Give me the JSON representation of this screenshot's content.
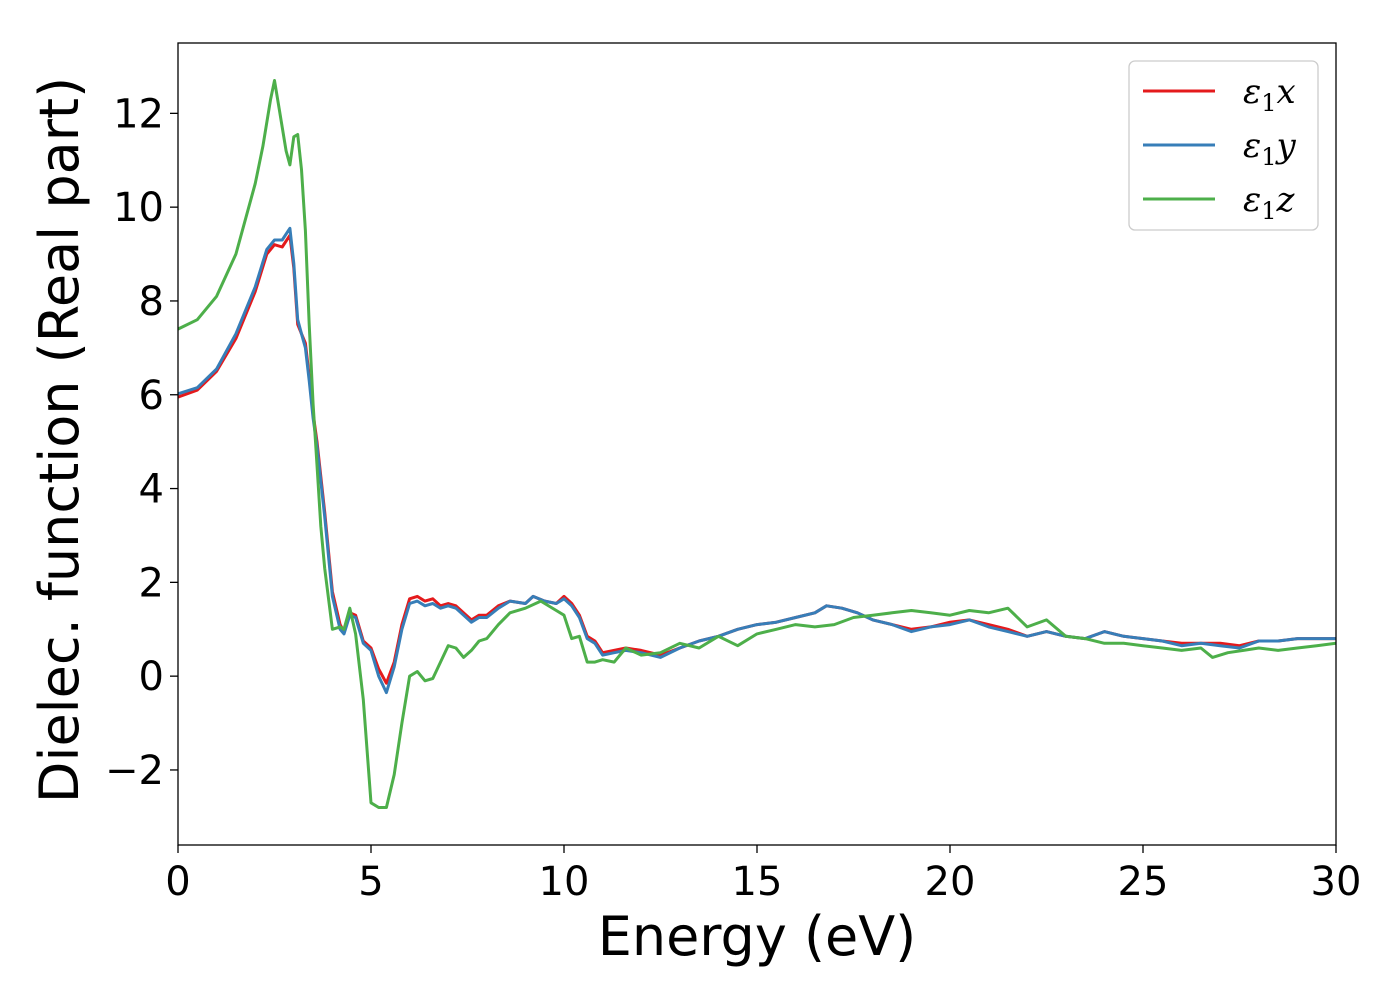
{
  "chart_data": {
    "type": "line",
    "xlabel": "Energy (eV)",
    "ylabel": "Dielec. function (Real part)",
    "xlim": [
      0,
      30
    ],
    "ylim": [
      -3.6,
      13.5
    ],
    "xticks": [
      0,
      5,
      10,
      15,
      20,
      25,
      30
    ],
    "xtick_labels": [
      "0",
      "5",
      "10",
      "15",
      "20",
      "25",
      "30"
    ],
    "yticks": [
      -2,
      0,
      2,
      4,
      6,
      8,
      10,
      12
    ],
    "ytick_labels": [
      "−2",
      "0",
      "2",
      "4",
      "6",
      "8",
      "10",
      "12"
    ],
    "grid": false,
    "legend_position": "top-right",
    "series": [
      {
        "name": "ε1x",
        "color": "#e41a1c",
        "x": [
          0,
          0.5,
          1,
          1.5,
          2,
          2.3,
          2.5,
          2.7,
          2.9,
          3.0,
          3.1,
          3.2,
          3.3,
          3.4,
          3.5,
          3.6,
          3.8,
          4.0,
          4.2,
          4.3,
          4.45,
          4.6,
          4.8,
          5.0,
          5.2,
          5.4,
          5.6,
          5.8,
          6.0,
          6.2,
          6.4,
          6.6,
          6.8,
          7.0,
          7.2,
          7.4,
          7.6,
          7.8,
          8.0,
          8.3,
          8.6,
          9.0,
          9.2,
          9.5,
          9.8,
          10.0,
          10.2,
          10.4,
          10.6,
          10.8,
          11.0,
          11.3,
          11.6,
          12.0,
          12.5,
          13.0,
          13.5,
          14.0,
          14.5,
          15.0,
          15.5,
          16.0,
          16.5,
          16.8,
          17.2,
          17.6,
          18.0,
          18.5,
          19.0,
          19.5,
          20.0,
          20.5,
          21.0,
          21.5,
          22.0,
          22.5,
          23.0,
          23.5,
          24.0,
          24.5,
          25.0,
          25.5,
          26.0,
          26.5,
          27.0,
          27.5,
          28.0,
          28.5,
          29.0,
          29.5,
          30.0
        ],
        "y": [
          5.95,
          6.1,
          6.5,
          7.2,
          8.2,
          9.0,
          9.2,
          9.15,
          9.4,
          8.7,
          7.5,
          7.3,
          7.1,
          6.4,
          5.6,
          5.0,
          3.5,
          1.8,
          1.1,
          0.95,
          1.35,
          1.3,
          0.75,
          0.6,
          0.15,
          -0.15,
          0.3,
          1.1,
          1.65,
          1.7,
          1.6,
          1.65,
          1.5,
          1.55,
          1.5,
          1.35,
          1.2,
          1.3,
          1.3,
          1.5,
          1.6,
          1.55,
          1.7,
          1.6,
          1.55,
          1.7,
          1.55,
          1.3,
          0.85,
          0.75,
          0.5,
          0.55,
          0.6,
          0.55,
          0.45,
          0.6,
          0.75,
          0.85,
          1.0,
          1.1,
          1.15,
          1.25,
          1.35,
          1.5,
          1.45,
          1.35,
          1.2,
          1.1,
          1.0,
          1.05,
          1.15,
          1.2,
          1.1,
          1.0,
          0.85,
          0.95,
          0.85,
          0.8,
          0.95,
          0.85,
          0.8,
          0.75,
          0.7,
          0.7,
          0.7,
          0.65,
          0.75,
          0.75,
          0.8,
          0.8,
          0.8
        ]
      },
      {
        "name": "ε1y",
        "color": "#377eb8",
        "x": [
          0,
          0.5,
          1,
          1.5,
          2,
          2.3,
          2.5,
          2.7,
          2.9,
          3.0,
          3.1,
          3.2,
          3.3,
          3.4,
          3.5,
          3.6,
          3.8,
          4.0,
          4.2,
          4.3,
          4.45,
          4.6,
          4.8,
          5.0,
          5.2,
          5.4,
          5.6,
          5.8,
          6.0,
          6.2,
          6.4,
          6.6,
          6.8,
          7.0,
          7.2,
          7.4,
          7.6,
          7.8,
          8.0,
          8.3,
          8.6,
          9.0,
          9.2,
          9.5,
          9.8,
          10.0,
          10.2,
          10.4,
          10.6,
          10.8,
          11.0,
          11.3,
          11.6,
          12.0,
          12.5,
          13.0,
          13.5,
          14.0,
          14.5,
          15.0,
          15.5,
          16.0,
          16.5,
          16.8,
          17.2,
          17.6,
          18.0,
          18.5,
          19.0,
          19.5,
          20.0,
          20.5,
          21.0,
          21.5,
          22.0,
          22.5,
          23.0,
          23.5,
          24.0,
          24.5,
          25.0,
          25.5,
          26.0,
          26.5,
          27.0,
          27.5,
          28.0,
          28.5,
          29.0,
          29.5,
          30.0
        ],
        "y": [
          6.02,
          6.15,
          6.55,
          7.3,
          8.3,
          9.1,
          9.3,
          9.3,
          9.55,
          8.8,
          7.6,
          7.3,
          7.0,
          6.3,
          5.5,
          4.9,
          3.4,
          1.7,
          1.0,
          0.9,
          1.3,
          1.25,
          0.7,
          0.55,
          0.0,
          -0.35,
          0.2,
          1.0,
          1.55,
          1.6,
          1.5,
          1.55,
          1.45,
          1.5,
          1.45,
          1.3,
          1.15,
          1.25,
          1.25,
          1.45,
          1.6,
          1.55,
          1.7,
          1.6,
          1.55,
          1.65,
          1.5,
          1.25,
          0.8,
          0.7,
          0.45,
          0.5,
          0.55,
          0.5,
          0.4,
          0.6,
          0.75,
          0.85,
          1.0,
          1.1,
          1.15,
          1.25,
          1.35,
          1.5,
          1.45,
          1.35,
          1.2,
          1.1,
          0.95,
          1.05,
          1.1,
          1.2,
          1.05,
          0.95,
          0.85,
          0.95,
          0.85,
          0.8,
          0.95,
          0.85,
          0.8,
          0.75,
          0.65,
          0.7,
          0.65,
          0.6,
          0.75,
          0.75,
          0.8,
          0.8,
          0.8
        ]
      },
      {
        "name": "ε1z",
        "color": "#4daf4a",
        "x": [
          0,
          0.5,
          1,
          1.5,
          2,
          2.2,
          2.4,
          2.5,
          2.6,
          2.8,
          2.9,
          3.0,
          3.1,
          3.2,
          3.3,
          3.4,
          3.5,
          3.6,
          3.7,
          3.8,
          4.0,
          4.2,
          4.3,
          4.45,
          4.6,
          4.8,
          5.0,
          5.2,
          5.4,
          5.6,
          5.8,
          6.0,
          6.2,
          6.4,
          6.6,
          6.8,
          7.0,
          7.2,
          7.4,
          7.6,
          7.8,
          8.0,
          8.3,
          8.6,
          9.0,
          9.4,
          9.8,
          10.0,
          10.2,
          10.4,
          10.6,
          10.8,
          11.0,
          11.3,
          11.6,
          12.0,
          12.5,
          13.0,
          13.5,
          14.0,
          14.5,
          15.0,
          15.5,
          16.0,
          16.5,
          17.0,
          17.5,
          18.0,
          18.5,
          19.0,
          19.5,
          20.0,
          20.5,
          21.0,
          21.5,
          22.0,
          22.5,
          23.0,
          23.5,
          24.0,
          24.5,
          25.0,
          25.5,
          26.0,
          26.5,
          26.8,
          27.2,
          27.6,
          28.0,
          28.5,
          29.0,
          29.5,
          30.0
        ],
        "y": [
          7.4,
          7.6,
          8.1,
          9.0,
          10.5,
          11.3,
          12.3,
          12.7,
          12.2,
          11.2,
          10.9,
          11.5,
          11.55,
          10.8,
          9.5,
          7.5,
          5.8,
          4.5,
          3.2,
          2.3,
          1.0,
          1.05,
          1.0,
          1.45,
          0.9,
          -0.5,
          -2.7,
          -2.8,
          -2.8,
          -2.1,
          -1.0,
          0.0,
          0.1,
          -0.1,
          -0.05,
          0.3,
          0.65,
          0.6,
          0.4,
          0.55,
          0.75,
          0.8,
          1.1,
          1.35,
          1.45,
          1.6,
          1.4,
          1.3,
          0.8,
          0.85,
          0.3,
          0.3,
          0.35,
          0.3,
          0.6,
          0.45,
          0.5,
          0.7,
          0.6,
          0.85,
          0.65,
          0.9,
          1.0,
          1.1,
          1.05,
          1.1,
          1.25,
          1.3,
          1.35,
          1.4,
          1.35,
          1.3,
          1.4,
          1.35,
          1.45,
          1.05,
          1.2,
          0.85,
          0.8,
          0.7,
          0.7,
          0.65,
          0.6,
          0.55,
          0.6,
          0.4,
          0.5,
          0.55,
          0.6,
          0.55,
          0.6,
          0.65,
          0.7
        ]
      }
    ]
  }
}
